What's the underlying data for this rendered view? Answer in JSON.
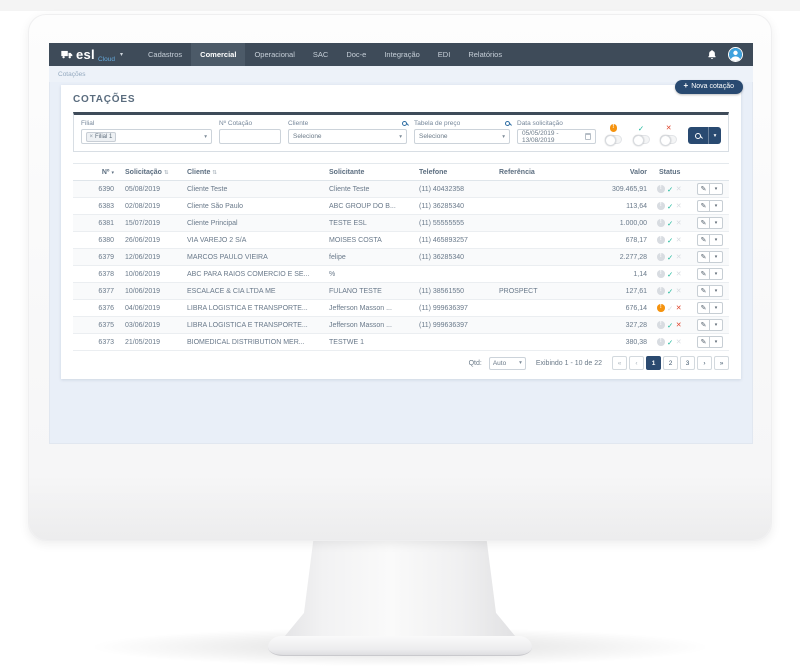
{
  "navbar": {
    "brand": "esl",
    "brand_suffix": "Cloud",
    "items": [
      {
        "label": "Cadastros",
        "active": false
      },
      {
        "label": "Comercial",
        "active": true
      },
      {
        "label": "Operacional",
        "active": false
      },
      {
        "label": "SAC",
        "active": false
      },
      {
        "label": "Doc-e",
        "active": false
      },
      {
        "label": "Integração",
        "active": false
      },
      {
        "label": "EDI",
        "active": false
      },
      {
        "label": "Relatórios",
        "active": false
      }
    ]
  },
  "breadcrumb": "Cotações",
  "page": {
    "title": "COTAÇÕES",
    "new_button_label": "Nova cotação"
  },
  "filters": {
    "filial": {
      "label": "Filial",
      "tag": "Filial 1"
    },
    "numero": {
      "label": "Nº Cotação",
      "value": ""
    },
    "cliente": {
      "label": "Cliente",
      "value": "Selecione"
    },
    "tabela_preco": {
      "label": "Tabela de preço",
      "value": "Selecione"
    },
    "data_solicitacao": {
      "label": "Data solicitação",
      "value": "05/05/2019 - 13/08/2019"
    },
    "toggles": [
      {
        "name": "pendente",
        "icon": "warning-circle",
        "state": "off"
      },
      {
        "name": "aprovada",
        "icon": "check",
        "state": "off"
      },
      {
        "name": "reprovada",
        "icon": "cross",
        "state": "off"
      }
    ]
  },
  "table": {
    "columns": [
      "Nº",
      "Solicitação",
      "Cliente",
      "Solicitante",
      "Telefone",
      "Referência",
      "Valor",
      "Status"
    ],
    "rows": [
      {
        "n": "6390",
        "solicitacao": "05/08/2019",
        "cliente": "Cliente Teste",
        "solicitante": "Cliente Teste",
        "telefone": "(11) 40432358",
        "referencia": "",
        "valor": "309.465,91",
        "status": {
          "warn": false,
          "ok": true,
          "cross": false
        }
      },
      {
        "n": "6383",
        "solicitacao": "02/08/2019",
        "cliente": "Cliente São Paulo",
        "solicitante": "ABC GROUP DO B...",
        "telefone": "(11) 36285340",
        "referencia": "",
        "valor": "113,64",
        "status": {
          "warn": false,
          "ok": true,
          "cross": false
        }
      },
      {
        "n": "6381",
        "solicitacao": "15/07/2019",
        "cliente": "Cliente Principal",
        "solicitante": "TESTE ESL",
        "telefone": "(11) 55555555",
        "referencia": "",
        "valor": "1.000,00",
        "status": {
          "warn": false,
          "ok": true,
          "cross": false
        }
      },
      {
        "n": "6380",
        "solicitacao": "26/06/2019",
        "cliente": "VIA VAREJO 2 S/A",
        "solicitante": "MOISES COSTA",
        "telefone": "(11) 465893257",
        "referencia": "",
        "valor": "678,17",
        "status": {
          "warn": false,
          "ok": true,
          "cross": false
        }
      },
      {
        "n": "6379",
        "solicitacao": "12/06/2019",
        "cliente": "MARCOS PAULO VIEIRA",
        "solicitante": "felipe",
        "telefone": "(11) 36285340",
        "referencia": "",
        "valor": "2.277,28",
        "status": {
          "warn": false,
          "ok": true,
          "cross": false
        }
      },
      {
        "n": "6378",
        "solicitacao": "10/06/2019",
        "cliente": "ABC PARA RAIOS COMERCIO E SE...",
        "solicitante": "%",
        "telefone": "",
        "referencia": "",
        "valor": "1,14",
        "status": {
          "warn": false,
          "ok": true,
          "cross": false
        }
      },
      {
        "n": "6377",
        "solicitacao": "10/06/2019",
        "cliente": "ESCALACE & CIA LTDA ME",
        "solicitante": "FULANO TESTE",
        "telefone": "(11) 38561550",
        "referencia": "PROSPECT",
        "valor": "127,61",
        "status": {
          "warn": false,
          "ok": true,
          "cross": false
        }
      },
      {
        "n": "6376",
        "solicitacao": "04/06/2019",
        "cliente": "LIBRA LOGISTICA E TRANSPORTE...",
        "solicitante": "Jefferson Masson ...",
        "telefone": "(11) 999636397",
        "referencia": "",
        "valor": "676,14",
        "status": {
          "warn": true,
          "ok": false,
          "cross": true
        }
      },
      {
        "n": "6375",
        "solicitacao": "03/06/2019",
        "cliente": "LIBRA LOGISTICA E TRANSPORTE...",
        "solicitante": "Jefferson Masson ...",
        "telefone": "(11) 999636397",
        "referencia": "",
        "valor": "327,28",
        "status": {
          "warn": false,
          "ok": true,
          "cross": true
        }
      },
      {
        "n": "6373",
        "solicitacao": "21/05/2019",
        "cliente": "BIOMEDICAL DISTRIBUTION MER...",
        "solicitante": "TESTWE 1",
        "telefone": "",
        "referencia": "",
        "valor": "380,38",
        "status": {
          "warn": false,
          "ok": true,
          "cross": false
        }
      }
    ]
  },
  "footer": {
    "qtd_label": "Qtd:",
    "qtd_value": "Auto",
    "info": "Exibindo 1 - 10 de 22",
    "pages": [
      {
        "label": "«",
        "state": "muted"
      },
      {
        "label": "‹",
        "state": "muted"
      },
      {
        "label": "1",
        "state": "active"
      },
      {
        "label": "2",
        "state": "normal"
      },
      {
        "label": "3",
        "state": "normal"
      },
      {
        "label": "›",
        "state": "normal"
      },
      {
        "label": "»",
        "state": "normal"
      }
    ]
  },
  "colors": {
    "navbar": "#3e4b59",
    "accent_navy": "#294a71",
    "status_ok": "#17b598",
    "status_warn": "#f5930f",
    "status_cross": "#e0472e",
    "screen_bg": "#e9eff8"
  }
}
